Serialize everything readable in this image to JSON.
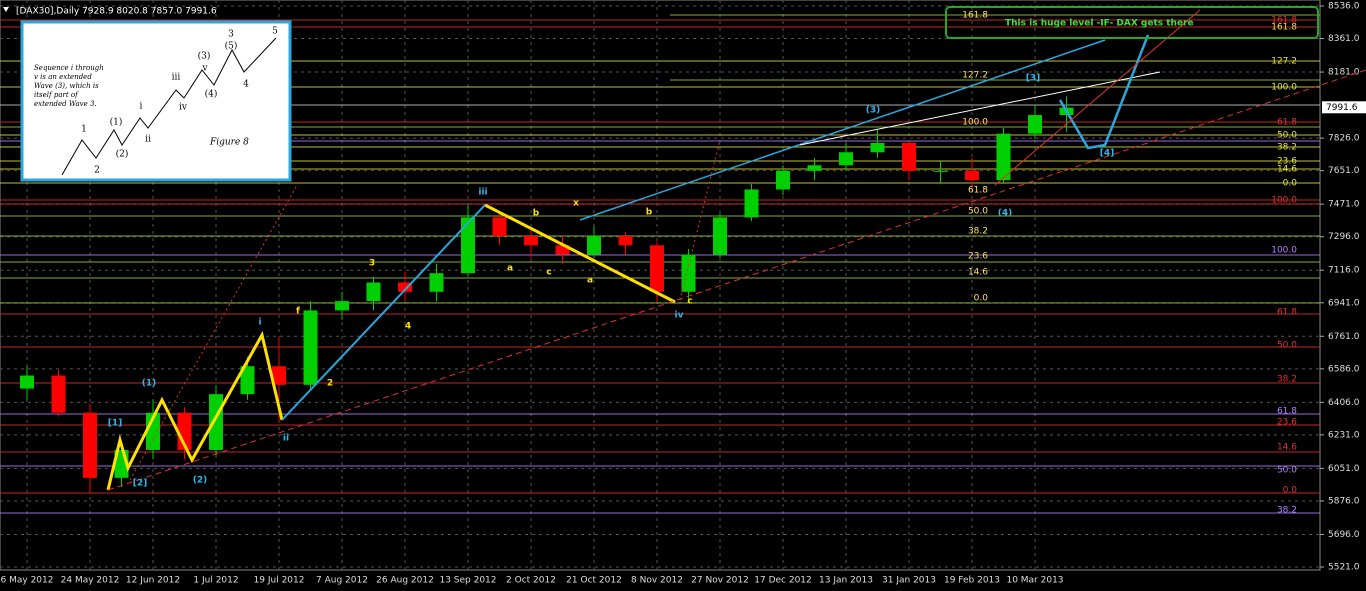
{
  "chart_data": {
    "type": "candlestick",
    "title": "[DAX30],Daily  7928.9 8020.8 7857.0 7991.6",
    "categories": [
      "6 May 2012",
      null,
      "24 May 2012",
      null,
      "12 Jun 2012",
      null,
      "1 Jul 2012",
      null,
      "19 Jul 2012",
      null,
      "7 Aug 2012",
      null,
      "26 Aug 2012",
      null,
      "13 Sep 2012",
      null,
      "2 Oct 2012",
      null,
      "21 Oct 2012",
      null,
      "8 Nov 2012",
      null,
      "27 Nov 2012",
      null,
      "17 Dec 2012",
      null,
      "13 Jan 2013",
      null,
      "31 Jan 2013",
      null,
      "19 Feb 2013",
      null,
      "10 Mar 2013",
      null
    ],
    "open": [
      6480,
      6550,
      6350,
      6000,
      6150,
      6350,
      6150,
      6450,
      6600,
      6500,
      6900,
      6950,
      7050,
      7000,
      7100,
      7400,
      7300,
      7250,
      7200,
      7300,
      7250,
      7000,
      7200,
      7400,
      7550,
      7650,
      7680,
      7750,
      7800,
      7650,
      7650,
      7600,
      7850,
      7950
    ],
    "high": [
      6600,
      6580,
      6400,
      6180,
      6420,
      6380,
      6500,
      6650,
      6760,
      6950,
      7000,
      7080,
      7110,
      7150,
      7470,
      7430,
      7330,
      7300,
      7350,
      7320,
      7270,
      7230,
      7420,
      7580,
      7680,
      7720,
      7800,
      7870,
      7810,
      7700,
      7720,
      7880,
      8000,
      8050
    ],
    "low": [
      6420,
      6330,
      5920,
      5950,
      6100,
      6100,
      6120,
      6420,
      6300,
      6480,
      6850,
      6900,
      6950,
      6950,
      7080,
      7250,
      7180,
      7150,
      7180,
      7200,
      6950,
      6960,
      7180,
      7380,
      7520,
      7600,
      7650,
      7720,
      7600,
      7580,
      7560,
      7580,
      7820,
      7860
    ],
    "close": [
      6550,
      6350,
      6000,
      6150,
      6350,
      6150,
      6450,
      6600,
      6500,
      6900,
      6950,
      7050,
      7000,
      7100,
      7400,
      7300,
      7250,
      7200,
      7300,
      7250,
      7000,
      7200,
      7400,
      7550,
      7650,
      7680,
      7750,
      7800,
      7650,
      7650,
      7600,
      7850,
      7950,
      7990
    ],
    "up_color": "#00d000",
    "down_color": "#ff0000",
    "ylim": [
      5521,
      8536
    ],
    "yticks": [
      {
        "value": 5521,
        "label": "5521.0"
      },
      {
        "value": 5696,
        "label": "5696.0"
      },
      {
        "value": 5876,
        "label": "5876.0"
      },
      {
        "value": 6051,
        "label": "6051.0"
      },
      {
        "value": 6231,
        "label": "6231.0"
      },
      {
        "value": 6406,
        "label": "6406.0"
      },
      {
        "value": 6586,
        "label": "6586.0"
      },
      {
        "value": 6761,
        "label": "6761.0"
      },
      {
        "value": 6941,
        "label": "6941.0"
      },
      {
        "value": 7116,
        "label": "7116.0"
      },
      {
        "value": 7296,
        "label": "7296.0"
      },
      {
        "value": 7471,
        "label": "7471.0"
      },
      {
        "value": 7651,
        "label": "7651.0"
      },
      {
        "value": 7826,
        "label": "7826.0"
      },
      {
        "value": 8181,
        "label": "8181.0"
      },
      {
        "value": 8361,
        "label": "8361.0"
      },
      {
        "value": 8536,
        "label": "8536.0"
      }
    ],
    "last_price": {
      "value": 7991.6,
      "label": "7991.6"
    },
    "grid": true,
    "callout": "This is huge level -IF- DAX gets there",
    "inset_text": "Sequence i through v is an extended Wave (3), which is itself part of extended Wave 3.",
    "inset_caption": "Figure 8",
    "inset_labels": [
      "1",
      "2",
      "(1)",
      "(2)",
      "i",
      "ii",
      "iii",
      "iv",
      "v",
      "(3)",
      "(4)",
      "(5)",
      "3",
      "4",
      "5"
    ],
    "wave_labels": [
      "[1]",
      "[2]",
      "(1)",
      "(2)",
      "i",
      "ii",
      "iii",
      "iv",
      "(3)",
      "(4)",
      "[3]",
      "[4]",
      "f",
      "2",
      "3",
      "4",
      "a",
      "b",
      "c",
      "x",
      "a",
      "b",
      "c"
    ],
    "fib_labels": [
      "161.8",
      "127.2",
      "100.0",
      "61.8",
      "50.0",
      "38.2",
      "23.6",
      "14.6",
      "0.0"
    ],
    "right_fib_labels": [
      "161.8",
      "161.8",
      "127.2",
      "100.0",
      "61.8",
      "50.0",
      "38.2",
      "23.6",
      "14.6",
      "0.0",
      "100.0",
      "100.0",
      "61.8",
      "50.0",
      "38.2",
      "61.8",
      "23.6",
      "14.6",
      "50.0",
      "0.0",
      "38.2"
    ]
  }
}
